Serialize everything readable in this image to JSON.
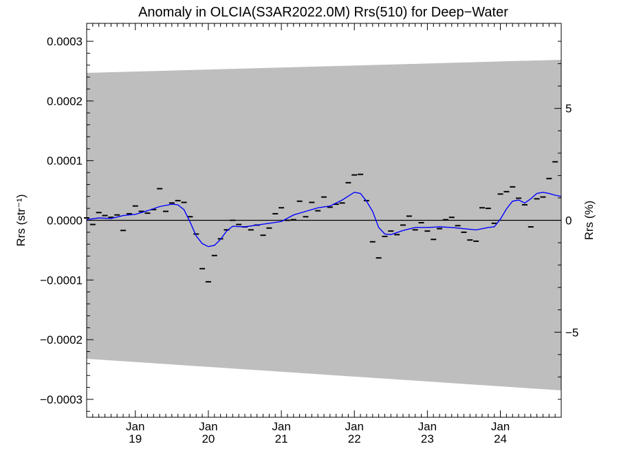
{
  "chart_data": {
    "type": "line",
    "title": "Anomaly in OLCIA(S3AR2022.0M) Rrs(510) for Deep−Water",
    "ylabel": "Rrs (str⁻¹)",
    "ylabel_right": "Rrs (%)",
    "xlim": [
      "2018-05",
      "2024-11"
    ],
    "ylim": [
      -0.00033,
      0.00033
    ],
    "ylim_right": [
      -8.8,
      8.8
    ],
    "x_ticks": [
      {
        "date": "2019-01",
        "month": "Jan",
        "year": "19"
      },
      {
        "date": "2020-01",
        "month": "Jan",
        "year": "20"
      },
      {
        "date": "2021-01",
        "month": "Jan",
        "year": "21"
      },
      {
        "date": "2022-01",
        "month": "Jan",
        "year": "22"
      },
      {
        "date": "2023-01",
        "month": "Jan",
        "year": "23"
      },
      {
        "date": "2024-01",
        "month": "Jan",
        "year": "24"
      }
    ],
    "y_ticks": [
      "0.0003",
      "0.0002",
      "0.0001",
      "0.0000",
      "−0.0001",
      "−0.0002",
      "−0.0003"
    ],
    "y_tick_values": [
      0.0003,
      0.0002,
      0.0001,
      0.0,
      -0.0001,
      -0.0002,
      -0.0003
    ],
    "y_ticks_right": [
      "5",
      "0",
      "−5"
    ],
    "y_tick_values_right": [
      5,
      0,
      -5
    ],
    "uncertainty_band": {
      "x": [
        "2018-05",
        "2024-11"
      ],
      "upper": [
        0.000247,
        0.000269
      ],
      "lower": [
        -0.000232,
        -0.000285
      ],
      "color": "#bebebe"
    },
    "zero_line": 0.0,
    "colors": {
      "smoothed": "#0000ff",
      "monthly": "#000000",
      "band": "#bebebe"
    },
    "series": [
      {
        "type": "monthly_markers",
        "x": [
          "2018-05",
          "2018-06",
          "2018-07",
          "2018-08",
          "2018-09",
          "2018-10",
          "2018-11",
          "2018-12",
          "2019-01",
          "2019-02",
          "2019-03",
          "2019-04",
          "2019-05",
          "2019-06",
          "2019-07",
          "2019-08",
          "2019-09",
          "2019-10",
          "2019-11",
          "2019-12",
          "2020-01",
          "2020-02",
          "2020-03",
          "2020-04",
          "2020-05",
          "2020-06",
          "2020-07",
          "2020-08",
          "2020-09",
          "2020-10",
          "2020-11",
          "2020-12",
          "2021-01",
          "2021-02",
          "2021-03",
          "2021-04",
          "2021-05",
          "2021-06",
          "2021-07",
          "2021-08",
          "2021-09",
          "2021-10",
          "2021-11",
          "2021-12",
          "2022-01",
          "2022-02",
          "2022-03",
          "2022-04",
          "2022-05",
          "2022-06",
          "2022-07",
          "2022-08",
          "2022-09",
          "2022-10",
          "2022-11",
          "2022-12",
          "2023-01",
          "2023-02",
          "2023-03",
          "2023-04",
          "2023-05",
          "2023-06",
          "2023-07",
          "2023-08",
          "2023-09",
          "2023-10",
          "2023-11",
          "2023-12",
          "2024-01",
          "2024-02",
          "2024-03",
          "2024-04",
          "2024-05",
          "2024-06",
          "2024-07",
          "2024-08",
          "2024-09",
          "2024-10"
        ],
        "values": [
          4e-06,
          -7e-06,
          1.3e-05,
          8e-06,
          5e-06,
          9e-06,
          -1.7e-05,
          1.1e-05,
          2.4e-05,
          1.5e-05,
          1.2e-05,
          1.8e-05,
          5.3e-05,
          1.5e-05,
          2.9e-05,
          3.3e-05,
          3e-05,
          6e-06,
          -2.3e-05,
          -8.1e-05,
          -0.000103,
          -5.9e-05,
          -3.1e-05,
          -1.6e-05,
          0.0,
          -7e-06,
          -1.1e-05,
          -1.6e-05,
          -8e-06,
          -2.5e-05,
          -1.3e-05,
          1.1e-05,
          2.1e-05,
          0.0,
          1e-06,
          3.2e-05,
          6e-06,
          3e-05,
          1.6e-05,
          3.9e-05,
          2.2e-05,
          2.7e-05,
          2.9e-05,
          6.3e-05,
          7.6e-05,
          7.7e-05,
          3.3e-05,
          -3.6e-05,
          -6.3e-05,
          -2.7e-05,
          -1.8e-05,
          -2.4e-05,
          -8e-06,
          7e-06,
          -1.6e-05,
          -4e-06,
          -1.8e-05,
          -3.2e-05,
          -1.4e-05,
          1e-06,
          5e-06,
          -9e-06,
          -2e-05,
          -3.3e-05,
          -3.5e-05,
          2.1e-05,
          2e-05,
          -5e-06,
          4.4e-05,
          4.8e-05,
          5.6e-05,
          3.7e-05,
          2.6e-05,
          -1.1e-05,
          3.6e-05,
          3.9e-05,
          7e-05,
          9.8e-05
        ]
      },
      {
        "type": "smoothed",
        "x": [
          "2018-05",
          "2018-07",
          "2018-09",
          "2018-11",
          "2019-01",
          "2019-03",
          "2019-05",
          "2019-07",
          "2019-08",
          "2019-09",
          "2019-10",
          "2019-11",
          "2019-12",
          "2020-01",
          "2020-02",
          "2020-03",
          "2020-04",
          "2020-05",
          "2020-07",
          "2020-09",
          "2020-11",
          "2021-01",
          "2021-03",
          "2021-05",
          "2021-07",
          "2021-09",
          "2021-11",
          "2022-01",
          "2022-02",
          "2022-03",
          "2022-04",
          "2022-05",
          "2022-06",
          "2022-07",
          "2022-09",
          "2022-11",
          "2023-01",
          "2023-03",
          "2023-05",
          "2023-07",
          "2023-09",
          "2023-11",
          "2023-12",
          "2024-01",
          "2024-02",
          "2024-03",
          "2024-04",
          "2024-05",
          "2024-06",
          "2024-07",
          "2024-08",
          "2024-09",
          "2024-10",
          "2024-11"
        ],
        "values": [
          1e-06,
          4e-06,
          3e-06,
          8e-06,
          1e-05,
          1.6e-05,
          2.3e-05,
          2.7e-05,
          2.6e-05,
          1.8e-05,
          -3e-06,
          -2.6e-05,
          -3.9e-05,
          -4.4e-05,
          -4.2e-05,
          -3.2e-05,
          -1.8e-05,
          -1e-05,
          -1.1e-05,
          -8e-06,
          -5e-06,
          -2e-06,
          9e-06,
          1.5e-05,
          2.1e-05,
          2.4e-05,
          3.4e-05,
          4.7e-05,
          4.5e-05,
          3.2e-05,
          1.5e-05,
          -1.2e-05,
          -2.3e-05,
          -2.4e-05,
          -1.7e-05,
          -1.2e-05,
          -1.2e-05,
          -1.1e-05,
          -1.2e-05,
          -1.4e-05,
          -1.6e-05,
          -1.2e-05,
          -1.1e-05,
          2e-06,
          1.9e-05,
          3.2e-05,
          3.4e-05,
          2.9e-05,
          3.6e-05,
          4.5e-05,
          4.7e-05,
          4.5e-05,
          4.2e-05,
          4e-05
        ]
      }
    ]
  }
}
